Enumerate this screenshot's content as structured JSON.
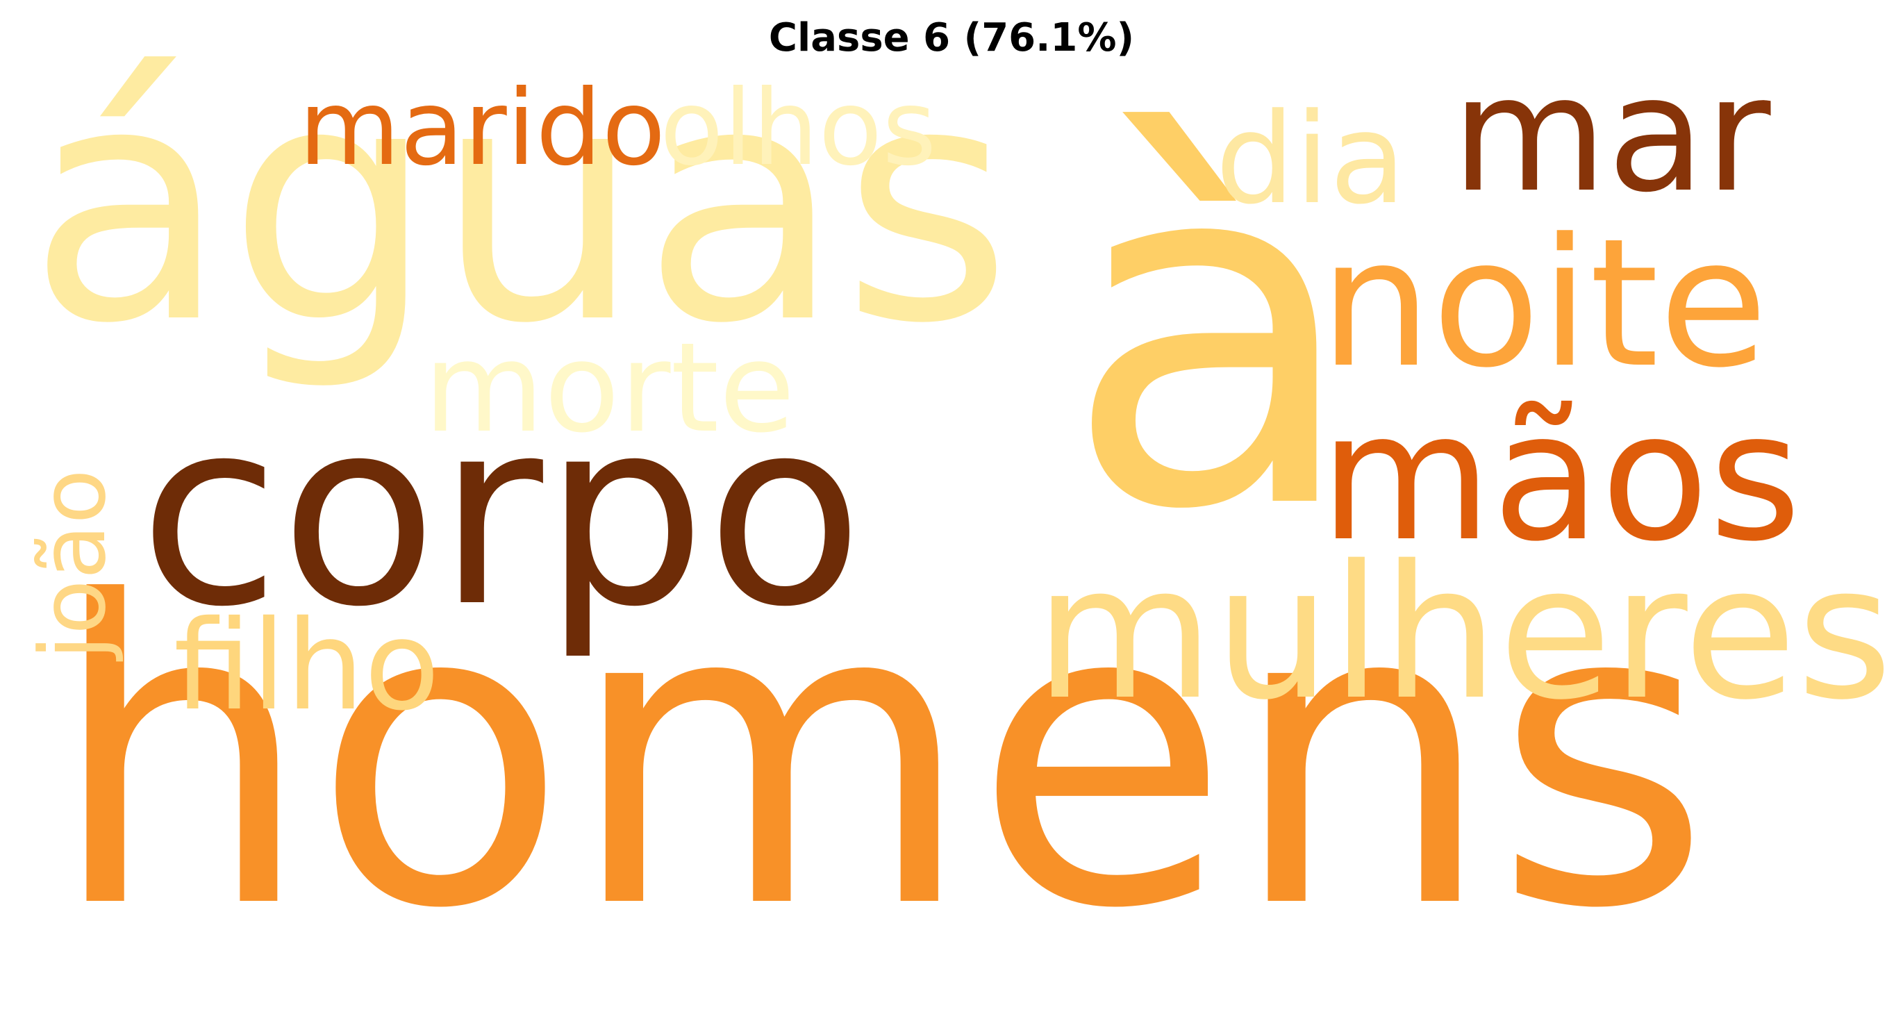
{
  "title": "Classe 6 (76.1%)",
  "words": [
    {
      "text": "homens",
      "color": "#f89128"
    },
    {
      "text": "à",
      "color": "#fecf66"
    },
    {
      "text": "águas",
      "color": "#feeba1"
    },
    {
      "text": "corpo",
      "color": "#6e2c07"
    },
    {
      "text": "mulheres",
      "color": "#fedb85"
    },
    {
      "text": "noite",
      "color": "#fda43a"
    },
    {
      "text": "mãos",
      "color": "#df5d0b"
    },
    {
      "text": "mar",
      "color": "#873409"
    },
    {
      "text": "morte",
      "color": "#fff8c9"
    },
    {
      "text": "filho",
      "color": "#fed67d"
    },
    {
      "text": "marido",
      "color": "#e46a12"
    },
    {
      "text": "olhos",
      "color": "#fff2ba"
    },
    {
      "text": "dia",
      "color": "#fee8a2"
    },
    {
      "text": "joão",
      "color": "#fed785"
    }
  ]
}
